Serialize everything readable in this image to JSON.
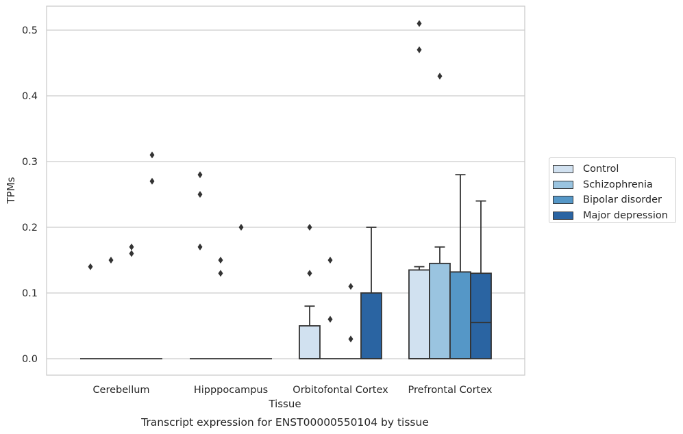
{
  "chart_data": {
    "type": "boxplot",
    "caption": "Transcript expression for ENST00000550104 by tissue",
    "xlabel": "Tissue",
    "ylabel": "TPMs",
    "ylim": [
      -0.025,
      0.537
    ],
    "yticks": [
      0.0,
      0.1,
      0.2,
      0.3,
      0.4,
      0.5
    ],
    "ytick_labels": [
      "0.0",
      "0.1",
      "0.2",
      "0.3",
      "0.4",
      "0.5"
    ],
    "grid": "horizontal",
    "legend_position": "right",
    "categories": [
      "Cerebellum",
      "Hipppocampus",
      "Orbitofontal Cortex",
      "Prefrontal Cortex"
    ],
    "series": [
      {
        "name": "Control",
        "color": "#d1e1f0",
        "boxes": [
          {
            "q1": 0,
            "median": 0,
            "q3": 0,
            "whisker_low": 0,
            "whisker_high": 0,
            "outliers": [
              0.14
            ]
          },
          {
            "q1": 0,
            "median": 0,
            "q3": 0,
            "whisker_low": 0,
            "whisker_high": 0,
            "outliers": [
              0.28,
              0.25,
              0.17
            ]
          },
          {
            "q1": 0,
            "median": 0,
            "q3": 0.05,
            "whisker_low": 0,
            "whisker_high": 0.08,
            "outliers": [
              0.2,
              0.13
            ]
          },
          {
            "q1": 0,
            "median": 0,
            "q3": 0.135,
            "whisker_low": 0,
            "whisker_high": 0.14,
            "outliers": [
              0.51,
              0.47
            ]
          }
        ]
      },
      {
        "name": "Schizophrenia",
        "color": "#9ac4e0",
        "boxes": [
          {
            "q1": 0,
            "median": 0,
            "q3": 0,
            "whisker_low": 0,
            "whisker_high": 0,
            "outliers": [
              0.15
            ]
          },
          {
            "q1": 0,
            "median": 0,
            "q3": 0,
            "whisker_low": 0,
            "whisker_high": 0,
            "outliers": [
              0.15,
              0.13
            ]
          },
          {
            "q1": 0,
            "median": 0,
            "q3": 0,
            "whisker_low": 0,
            "whisker_high": 0,
            "outliers": [
              0.15,
              0.06
            ]
          },
          {
            "q1": 0,
            "median": 0,
            "q3": 0.145,
            "whisker_low": 0,
            "whisker_high": 0.17,
            "outliers": [
              0.43
            ]
          }
        ]
      },
      {
        "name": "Bipolar disorder",
        "color": "#5597c7",
        "boxes": [
          {
            "q1": 0,
            "median": 0,
            "q3": 0,
            "whisker_low": 0,
            "whisker_high": 0,
            "outliers": [
              0.17,
              0.16
            ]
          },
          {
            "q1": 0,
            "median": 0,
            "q3": 0,
            "whisker_low": 0,
            "whisker_high": 0,
            "outliers": [
              0.2
            ]
          },
          {
            "q1": 0,
            "median": 0,
            "q3": 0,
            "whisker_low": 0,
            "whisker_high": 0,
            "outliers": [
              0.11,
              0.03
            ]
          },
          {
            "q1": 0,
            "median": 0,
            "q3": 0.132,
            "whisker_low": 0,
            "whisker_high": 0.28,
            "outliers": []
          }
        ]
      },
      {
        "name": "Major depression",
        "color": "#2a64a2",
        "boxes": [
          {
            "q1": 0,
            "median": 0,
            "q3": 0,
            "whisker_low": 0,
            "whisker_high": 0,
            "outliers": [
              0.31,
              0.27
            ]
          },
          {
            "q1": 0,
            "median": 0,
            "q3": 0,
            "whisker_low": 0,
            "whisker_high": 0,
            "outliers": []
          },
          {
            "q1": 0,
            "median": 0,
            "q3": 0.1,
            "whisker_low": 0,
            "whisker_high": 0.2,
            "outliers": []
          },
          {
            "q1": 0,
            "median": 0.055,
            "q3": 0.13,
            "whisker_low": 0,
            "whisker_high": 0.24,
            "outliers": []
          }
        ]
      }
    ]
  }
}
